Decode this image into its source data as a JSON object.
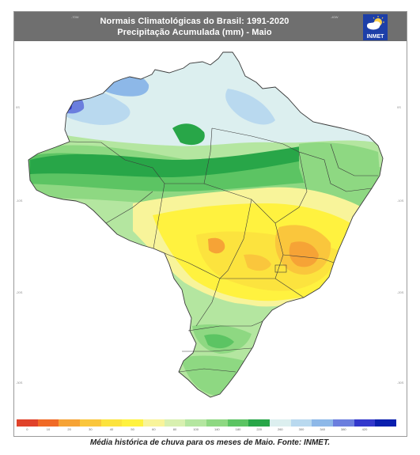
{
  "title": {
    "line1": "Normais Climatológicas do Brasil: 1991-2020",
    "line2": "Precipitação Acumulada (mm) - Maio"
  },
  "logo": {
    "text": "INMET",
    "icon": "inmet-sun-cloud-logo"
  },
  "axes": {
    "top": [
      "-70W",
      "-40W"
    ],
    "left": [
      "0S",
      "-10S",
      "-20S",
      "-30S"
    ],
    "right": [
      "0S",
      "-10S",
      "-20S",
      "-30S"
    ]
  },
  "legend": {
    "ticks": [
      "0",
      "10",
      "20",
      "30",
      "40",
      "50",
      "60",
      "80",
      "100",
      "140",
      "180",
      "220",
      "260",
      "300",
      "340",
      "380",
      "420"
    ],
    "colors": [
      "#e0422a",
      "#f06a26",
      "#f6a336",
      "#fac63c",
      "#fce33e",
      "#fff23f",
      "#f8f49a",
      "#d8f0b0",
      "#b4e6a0",
      "#8ed882",
      "#5cc463",
      "#28a648",
      "#dcefef",
      "#b9d9ef",
      "#8db8e8",
      "#6b7ede",
      "#3338cc",
      "#0a1fae"
    ]
  },
  "caption": "Média histórica de chuva para os meses de Maio. Fonte: INMET.",
  "map_colors": {
    "outside": "#ffffff",
    "light_green": "#b4e6a0",
    "mid_green": "#8ed882",
    "green": "#5cc463",
    "dark_green": "#28a648",
    "pale_green": "#d8f0b0",
    "pale_yellow": "#f8f49a",
    "yellow": "#fff23f",
    "yellow_orange": "#fce33e",
    "orange": "#fac63c",
    "dark_orange": "#f6a336",
    "pale_blue": "#dcefef",
    "light_blue": "#b9d9ef",
    "blue": "#8db8e8",
    "dark_blue": "#6b7ede",
    "deep_blue": "#3338cc",
    "border": "#3a3a3a"
  }
}
